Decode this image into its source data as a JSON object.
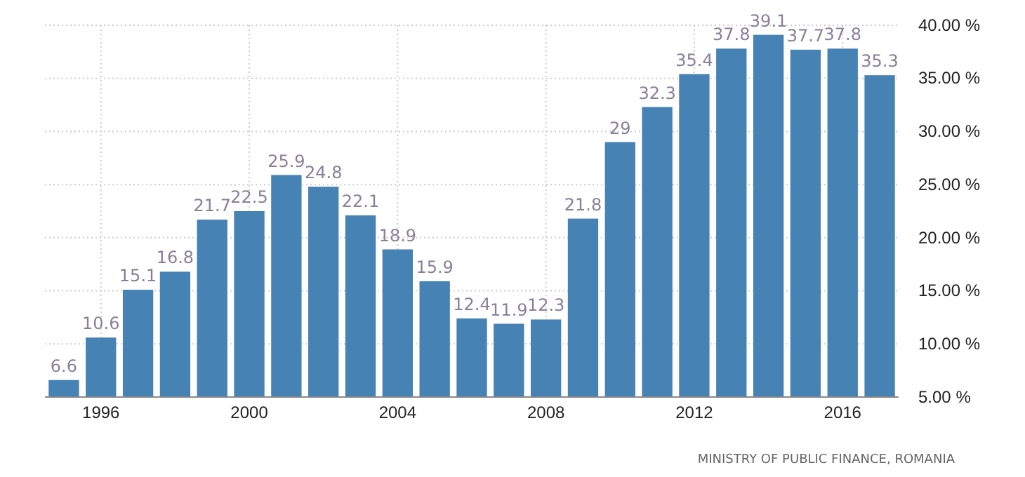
{
  "chart_data": {
    "type": "bar",
    "categories": [
      null,
      "1996",
      null,
      null,
      null,
      "2000",
      null,
      null,
      null,
      "2004",
      null,
      null,
      null,
      "2008",
      null,
      null,
      null,
      "2012",
      null,
      null,
      null,
      "2016",
      null
    ],
    "values": [
      6.6,
      10.6,
      15.1,
      16.8,
      21.7,
      22.5,
      25.9,
      24.8,
      22.1,
      18.9,
      15.9,
      12.4,
      11.9,
      12.3,
      21.8,
      29,
      32.3,
      35.4,
      37.8,
      39.1,
      37.7,
      37.8,
      35.3
    ],
    "color": "#4682b4",
    "ylim": [
      5,
      40
    ],
    "yticks": [
      {
        "value": 5,
        "label": "5.00 %"
      },
      {
        "value": 10,
        "label": "10.00 %"
      },
      {
        "value": 15,
        "label": "15.00 %"
      },
      {
        "value": 20,
        "label": "20.00 %"
      },
      {
        "value": 25,
        "label": "25.00 %"
      },
      {
        "value": 30,
        "label": "30.00 %"
      },
      {
        "value": 35,
        "label": "35.00 %"
      },
      {
        "value": 40,
        "label": "40.00 %"
      }
    ],
    "grid": true,
    "data_labels": true,
    "annotations": [
      "MINISTRY OF PUBLIC FINANCE, ROMANIA"
    ]
  }
}
